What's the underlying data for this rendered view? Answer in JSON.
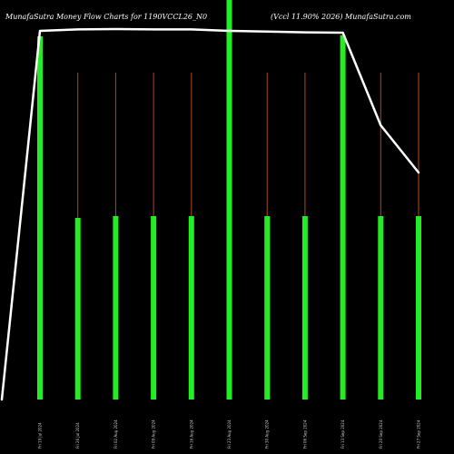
{
  "chart_data": {
    "type": "bar",
    "title_left": "MunafaSutra  Money Flow  Charts for 1190VCCL26_N0",
    "title_right": "(Vccl 11.90% 2026) MunafaSutra.com",
    "categories": [
      "Fri 19 Jul 2024",
      "Fri 26 Jul 2024",
      "Fri 02 Aug 2024",
      "Fri 09 Aug 2024",
      "Fri 16 Aug 2024",
      "Fri 23 Aug 2024",
      "Fri 30 Aug 2024",
      "Fri 06 Sep 2024",
      "Fri 13 Sep 2024",
      "Fri 20 Sep 2024",
      "Fri 27 Sep 2024"
    ],
    "series": [
      {
        "type": "bar",
        "values": [
          100,
          50,
          50.5,
          50.5,
          50.5,
          112,
          50.5,
          50.5,
          100.3,
          50.5,
          50.5
        ]
      },
      {
        "type": "line",
        "values": [
          101.5,
          101.9,
          102.0,
          101.9,
          101.9,
          101.5,
          101.3,
          101.1,
          101.0,
          75.5,
          62.5
        ]
      }
    ],
    "line_start_value": 0,
    "ylim": [
      0,
      110
    ],
    "colors": {
      "background": "#000000",
      "bar": "#22ee22",
      "stem": "#b3471a",
      "line": "#ffffff",
      "text": "#ffffff"
    },
    "grid": false,
    "legend": "none"
  }
}
